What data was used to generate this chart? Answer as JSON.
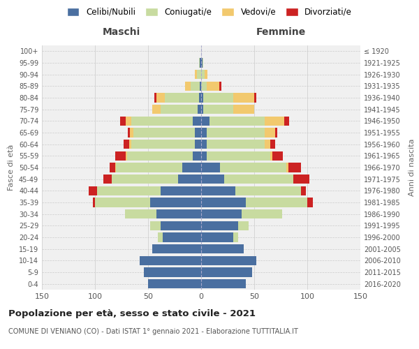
{
  "age_groups": [
    "100+",
    "95-99",
    "90-94",
    "85-89",
    "80-84",
    "75-79",
    "70-74",
    "65-69",
    "60-64",
    "55-59",
    "50-54",
    "45-49",
    "40-44",
    "35-39",
    "30-34",
    "25-29",
    "20-24",
    "15-19",
    "10-14",
    "5-9",
    "0-4"
  ],
  "birth_years": [
    "≤ 1920",
    "1921-1925",
    "1926-1930",
    "1931-1935",
    "1936-1940",
    "1941-1945",
    "1946-1950",
    "1951-1955",
    "1956-1960",
    "1961-1965",
    "1966-1970",
    "1971-1975",
    "1976-1980",
    "1981-1985",
    "1986-1990",
    "1991-1995",
    "1996-2000",
    "2001-2005",
    "2006-2010",
    "2011-2015",
    "2016-2020"
  ],
  "colors": {
    "celibi": "#4a6fa0",
    "coniugati": "#c8dba0",
    "vedovi": "#f2c96e",
    "divorziati": "#cc2222"
  },
  "male_celibi": [
    0,
    1,
    0,
    1,
    2,
    3,
    8,
    6,
    6,
    8,
    18,
    22,
    38,
    48,
    42,
    38,
    36,
    46,
    58,
    54,
    50
  ],
  "male_coniugati": [
    0,
    1,
    4,
    9,
    32,
    35,
    58,
    58,
    60,
    62,
    62,
    62,
    60,
    52,
    30,
    10,
    5,
    0,
    0,
    0,
    0
  ],
  "male_vedovi": [
    0,
    0,
    2,
    5,
    8,
    8,
    5,
    3,
    2,
    1,
    1,
    0,
    0,
    0,
    0,
    0,
    0,
    0,
    0,
    0,
    0
  ],
  "male_divorziati": [
    0,
    0,
    0,
    0,
    2,
    0,
    5,
    2,
    5,
    10,
    5,
    8,
    8,
    2,
    0,
    0,
    0,
    0,
    0,
    0,
    0
  ],
  "female_celibi": [
    0,
    1,
    0,
    0,
    2,
    2,
    8,
    5,
    5,
    5,
    18,
    22,
    32,
    42,
    38,
    35,
    30,
    40,
    52,
    48,
    42
  ],
  "female_coniugati": [
    0,
    1,
    3,
    5,
    28,
    28,
    52,
    55,
    55,
    60,
    62,
    65,
    62,
    58,
    38,
    10,
    5,
    0,
    0,
    0,
    0
  ],
  "female_vedovi": [
    0,
    0,
    3,
    12,
    20,
    20,
    18,
    10,
    5,
    2,
    2,
    0,
    0,
    0,
    0,
    0,
    0,
    0,
    0,
    0,
    0
  ],
  "female_divorziati": [
    0,
    0,
    0,
    2,
    2,
    0,
    5,
    2,
    5,
    10,
    12,
    15,
    5,
    5,
    0,
    0,
    0,
    0,
    0,
    0,
    0
  ],
  "xlim": 150,
  "title": "Popolazione per età, sesso e stato civile - 2021",
  "subtitle": "COMUNE DI VENIANO (CO) - Dati ISTAT 1° gennaio 2021 - Elaborazione TUTTITALIA.IT",
  "ylabel_left": "Fasce di età",
  "ylabel_right": "Anni di nascita",
  "xlabel_male": "Maschi",
  "xlabel_female": "Femmine"
}
